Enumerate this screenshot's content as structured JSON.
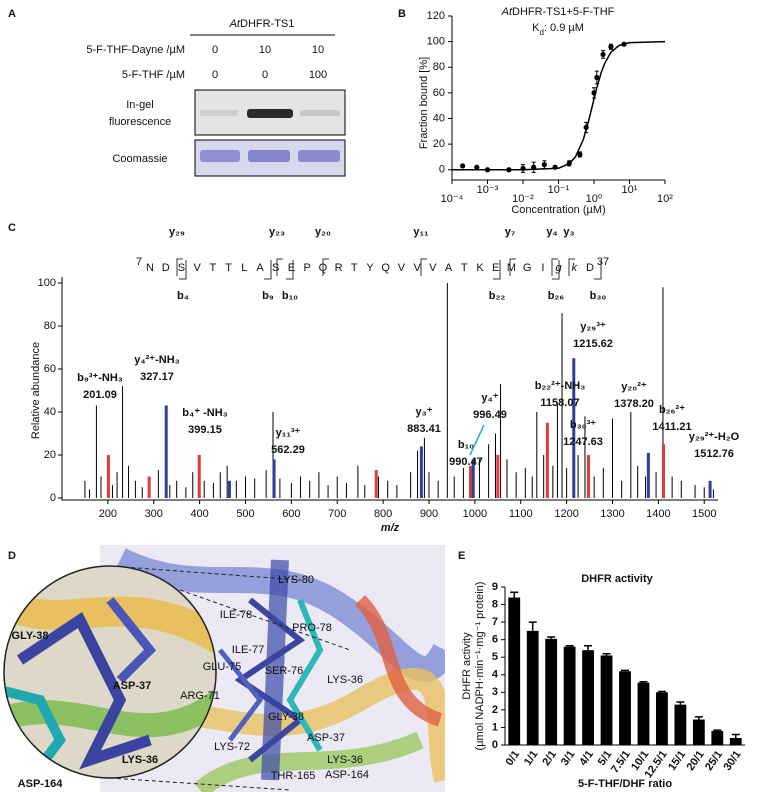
{
  "panel_labels": [
    "A",
    "B",
    "C",
    "D",
    "E"
  ],
  "gel": {
    "title_italic": "At",
    "title": "DHFR-TS1",
    "rows": [
      {
        "label": "5-F-THF-Dayne /µM",
        "values": [
          "0",
          "10",
          "10"
        ]
      },
      {
        "label": "5-F-THF /µM",
        "values": [
          "0",
          "0",
          "100"
        ]
      }
    ],
    "fluorescence_label": [
      "In-gel",
      "fluorescence"
    ],
    "coomassie_label": "Coomassie"
  },
  "structure": {
    "labels": [
      "LYS-80",
      "ILE-78",
      "PRO-78",
      "ILE-77",
      "GLU-75",
      "SER-76",
      "LYS-36",
      "ARG-71",
      "GLY-38",
      "LYS-72",
      "ASP-37",
      "THR-165",
      "LYS-36",
      "ASP-164"
    ],
    "zoom_labels": [
      "GLY-38",
      "ASP-37",
      "LYS-36",
      "ASP-164"
    ]
  },
  "chart_data": [
    {
      "type": "scatter",
      "title": [
        "At",
        "DHFR-TS1+5-F-THF"
      ],
      "subtitle": [
        "K",
        "d",
        ": 0.9 µM"
      ],
      "x_label": "Concentration (µM)",
      "y_label": "Fraction bound [%]",
      "log_x": true,
      "color": "#000000",
      "xlim": [
        0.0001,
        100
      ],
      "xticks": [
        {
          "value": 0.0001,
          "label": "10⁻⁴"
        },
        {
          "value": 0.001,
          "label": "10⁻³"
        },
        {
          "value": 0.01,
          "label": "10⁻²"
        },
        {
          "value": 0.1,
          "label": "10⁻¹"
        },
        {
          "value": 1,
          "label": "10⁰"
        },
        {
          "value": 10,
          "label": "10¹"
        },
        {
          "value": 100,
          "label": "10²"
        }
      ],
      "ylim": [
        -8,
        120
      ],
      "yticks": [
        0,
        20,
        40,
        60,
        80,
        100,
        120
      ],
      "x": [
        0.0002,
        0.0005,
        0.001,
        0.004,
        0.01,
        0.02,
        0.04,
        0.08,
        0.2,
        0.4,
        0.6,
        1.0,
        1.2,
        1.8,
        3,
        7
      ],
      "values": [
        3,
        2,
        0,
        0,
        1,
        2,
        4,
        2,
        5,
        12,
        33,
        60,
        72,
        90,
        96,
        98
      ],
      "errors": [
        0,
        0,
        0,
        0,
        3,
        4,
        3,
        0,
        2,
        2,
        4,
        4,
        5,
        3,
        2,
        1
      ],
      "fit": {
        "x": [
          0.0001,
          0.01,
          0.1,
          0.2,
          0.3,
          0.5,
          0.7,
          0.9,
          1.2,
          1.6,
          2,
          3,
          5,
          10,
          100
        ],
        "values": [
          0,
          0,
          1.2,
          4.7,
          10,
          23.6,
          37.7,
          50,
          64,
          76,
          83,
          91.7,
          96.9,
          99.2,
          100
        ]
      }
    },
    {
      "type": "stem",
      "x_label": "m/z",
      "y_label": "Relative abundance",
      "xlim": [
        100,
        1530
      ],
      "xticks": [
        200,
        300,
        400,
        500,
        600,
        700,
        800,
        900,
        1000,
        1100,
        1200,
        1300,
        1400,
        1500
      ],
      "ylim": [
        0,
        100
      ],
      "yticks": [
        0,
        20,
        40,
        60,
        80,
        100
      ],
      "series": [
        {
          "color": "#000000",
          "x": [
            150,
            160,
            175,
            185,
            210,
            220,
            232,
            245,
            260,
            275,
            290,
            310,
            335,
            350,
            370,
            385,
            410,
            430,
            445,
            460,
            480,
            500,
            520,
            545,
            560,
            575,
            600,
            620,
            640,
            660,
            680,
            700,
            720,
            745,
            760,
            790,
            810,
            830,
            860,
            875,
            890,
            900,
            920,
            940,
            955,
            975,
            1010,
            1030,
            1045,
            1056,
            1070,
            1090,
            1110,
            1125,
            1135,
            1150,
            1170,
            1180,
            1190,
            1200,
            1225,
            1240,
            1260,
            1280,
            1300,
            1320,
            1340,
            1355,
            1372,
            1395,
            1410,
            1430,
            1450,
            1480,
            1500,
            1520
          ],
          "values": [
            8,
            4,
            43,
            10,
            6,
            12,
            52,
            15,
            8,
            5,
            9,
            13,
            6,
            8,
            5,
            12,
            8,
            7,
            12,
            15,
            8,
            10,
            9,
            13,
            40,
            9,
            7,
            10,
            8,
            12,
            6,
            10,
            7,
            15,
            6,
            10,
            8,
            6,
            12,
            22,
            28,
            12,
            8,
            100,
            10,
            14,
            18,
            25,
            30,
            53,
            18,
            12,
            14,
            10,
            40,
            20,
            15,
            44,
            86,
            14,
            20,
            38,
            10,
            14,
            37,
            8,
            40,
            15,
            10,
            12,
            98,
            10,
            8,
            6,
            5,
            4
          ]
        },
        {
          "color": "#e03a3a",
          "x": [
            201.09,
            290,
            399.15,
            785,
            990.47,
            1050,
            1158.07,
            1247.63,
            1411.21
          ],
          "values": [
            20,
            10,
            20,
            13,
            15,
            20,
            35,
            20,
            25
          ]
        },
        {
          "color": "#2f3f9e",
          "x": [
            327.17,
            465,
            562.29,
            883.41,
            996.49,
            1215.62,
            1378.2,
            1512.76
          ],
          "values": [
            43,
            8,
            18,
            24,
            18,
            65,
            21,
            8
          ]
        }
      ],
      "annotations": [
        {
          "label": "b₉³⁺-NH₃",
          "value": "201.09",
          "color": "#e03a3a"
        },
        {
          "label": "y₄²⁺-NH₃",
          "value": "327.17",
          "color": "#2f3f9e"
        },
        {
          "label": "b₄⁺ -NH₃",
          "value": "399.15",
          "color": "#e03a3a"
        },
        {
          "label": "y₁₁³⁺",
          "value": "562.29",
          "color": "#2f3f9e"
        },
        {
          "label": "y₃⁺",
          "value": "883.41",
          "color": "#2f3f9e"
        },
        {
          "label": "y₄⁺",
          "value": "996.49",
          "color": "#2f3f9e"
        },
        {
          "label": "b₁₀",
          "value": "990.47",
          "color": "#e03a3a"
        },
        {
          "label": "b₂₂²⁺-NH₃",
          "value": "1158.07",
          "color": "#e03a3a"
        },
        {
          "label": "b₃₀³⁺",
          "value": "1247.63",
          "color": "#e03a3a"
        },
        {
          "label": "y₂₉³⁺",
          "value": "1215.62",
          "color": "#2f3f9e"
        },
        {
          "label": "y₂₀²⁺",
          "value": "1378.20",
          "color": "#2f3f9e"
        },
        {
          "label": "b₂₆²⁺",
          "value": "1411.21",
          "color": "#e03a3a"
        },
        {
          "label": "y₂₉²⁺-H₂O",
          "value": "1512.76",
          "color": "#2f3f9e"
        }
      ],
      "peptide": {
        "start": "7",
        "end": "37",
        "sequence": [
          "N",
          "D",
          "S",
          "V",
          "T",
          "T",
          "L",
          "A",
          "S",
          "E",
          "P",
          "Q",
          "R",
          "T",
          "Y",
          "Q",
          "V",
          "V",
          "V",
          "A",
          "T",
          "K",
          "E",
          "M",
          "G",
          "I",
          "g",
          "k",
          "D"
        ],
        "y_ions": [
          "y₂₉",
          "y₂₃",
          "y₂₀",
          "y₁₁",
          "y₇",
          "y₄",
          "y₃"
        ],
        "b_ions": [
          "b₄",
          "b₉",
          "b₁₀",
          "b₂₂",
          "b₂₆",
          "b₃₀"
        ]
      }
    },
    {
      "type": "bar",
      "title": "DHFR activity",
      "x_label": "5-F-THF/DHF ratio",
      "y_label": [
        "DHFR activity",
        "(µmol NADPH·min⁻¹·mg⁻¹ protein)"
      ],
      "color": "#000000",
      "categories": [
        "0/1",
        "1/1",
        "2/1",
        "3/1",
        "4/1",
        "5/1",
        "7.5/1",
        "10/1",
        "12.5/1",
        "15/1",
        "20/1",
        "25/1",
        "30/1"
      ],
      "values": [
        8.4,
        6.5,
        6.05,
        5.6,
        5.4,
        5.1,
        4.2,
        3.55,
        3.0,
        2.3,
        1.45,
        0.8,
        0.4
      ],
      "errors": [
        0.3,
        0.5,
        0.1,
        0.05,
        0.25,
        0.1,
        0.05,
        0.05,
        0.05,
        0.15,
        0.15,
        0.05,
        0.2
      ],
      "ylim": [
        0,
        9
      ],
      "yticks": [
        0,
        1,
        2,
        3,
        4,
        5,
        6,
        7,
        8,
        9
      ]
    }
  ]
}
